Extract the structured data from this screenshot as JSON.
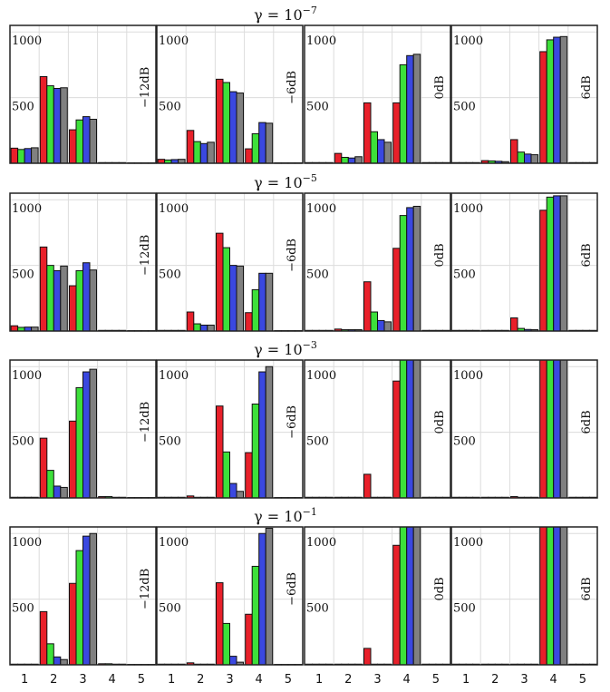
{
  "chart_data": {
    "type": "bar",
    "row_titles": [
      {
        "base": "γ = 10",
        "exp": "−7"
      },
      {
        "base": "γ = 10",
        "exp": "−5"
      },
      {
        "base": "γ = 10",
        "exp": "−3"
      },
      {
        "base": "γ = 10",
        "exp": "−1"
      }
    ],
    "column_labels": [
      "−12dB",
      "−6dB",
      "0dB",
      "6dB"
    ],
    "categories": [
      "1",
      "2",
      "3",
      "4",
      "5"
    ],
    "ylim": [
      0,
      1050
    ],
    "yticks": [
      500,
      1000
    ],
    "grid": true,
    "series_colors": [
      "#e8202a",
      "#3de03a",
      "#3a48e0",
      "#808080"
    ],
    "panels": [
      [
        [
          [
            115,
            105,
            112,
            118
          ],
          [
            660,
            590,
            570,
            575
          ],
          [
            255,
            330,
            355,
            335
          ],
          [
            5,
            5,
            5,
            5
          ],
          [
            3,
            3,
            3,
            3
          ]
        ],
        [
          [
            30,
            25,
            28,
            30
          ],
          [
            250,
            165,
            150,
            160
          ],
          [
            640,
            615,
            545,
            535
          ],
          [
            110,
            225,
            310,
            305
          ],
          [
            3,
            3,
            3,
            3
          ]
        ],
        [
          [
            5,
            5,
            5,
            5
          ],
          [
            75,
            45,
            40,
            50
          ],
          [
            460,
            240,
            180,
            160
          ],
          [
            460,
            750,
            820,
            830
          ],
          [
            5,
            5,
            5,
            5
          ]
        ],
        [
          [
            5,
            5,
            5,
            5
          ],
          [
            20,
            18,
            15,
            12
          ],
          [
            180,
            85,
            70,
            65
          ],
          [
            850,
            940,
            960,
            965
          ],
          [
            5,
            5,
            5,
            5
          ]
        ]
      ],
      [
        [
          [
            40,
            28,
            30,
            30
          ],
          [
            640,
            500,
            460,
            495
          ],
          [
            345,
            460,
            520,
            465
          ],
          [
            5,
            5,
            5,
            5
          ],
          [
            3,
            3,
            3,
            3
          ]
        ],
        [
          [
            5,
            5,
            5,
            5
          ],
          [
            145,
            55,
            45,
            45
          ],
          [
            745,
            635,
            500,
            495
          ],
          [
            140,
            315,
            440,
            440
          ],
          [
            3,
            3,
            3,
            3
          ]
        ],
        [
          [
            5,
            5,
            5,
            5
          ],
          [
            15,
            10,
            10,
            10
          ],
          [
            375,
            145,
            80,
            70
          ],
          [
            630,
            880,
            940,
            950
          ],
          [
            5,
            5,
            5,
            5
          ]
        ],
        [
          [
            5,
            5,
            5,
            5
          ],
          [
            5,
            5,
            5,
            5
          ],
          [
            100,
            20,
            12,
            10
          ],
          [
            920,
            1020,
            1030,
            1030
          ],
          [
            5,
            5,
            5,
            5
          ]
        ]
      ],
      [
        [
          [
            5,
            5,
            5,
            5
          ],
          [
            455,
            210,
            90,
            80
          ],
          [
            585,
            840,
            960,
            980
          ],
          [
            10,
            10,
            5,
            5
          ],
          [
            3,
            3,
            3,
            3
          ]
        ],
        [
          [
            5,
            5,
            5,
            5
          ],
          [
            15,
            5,
            5,
            5
          ],
          [
            700,
            350,
            110,
            50
          ],
          [
            345,
            715,
            960,
            1000
          ],
          [
            3,
            3,
            3,
            3
          ]
        ],
        [
          [
            5,
            5,
            5,
            5
          ],
          [
            5,
            5,
            5,
            5
          ],
          [
            180,
            5,
            5,
            5
          ],
          [
            890,
            1050,
            1050,
            1050
          ],
          [
            5,
            5,
            5,
            5
          ]
        ],
        [
          [
            5,
            5,
            5,
            5
          ],
          [
            5,
            5,
            5,
            5
          ],
          [
            10,
            5,
            5,
            5
          ],
          [
            1050,
            1050,
            1050,
            1050
          ],
          [
            5,
            5,
            5,
            5
          ]
        ]
      ],
      [
        [
          [
            5,
            5,
            5,
            5
          ],
          [
            405,
            160,
            60,
            40
          ],
          [
            620,
            870,
            980,
            1000
          ],
          [
            8,
            8,
            5,
            5
          ],
          [
            3,
            3,
            3,
            3
          ]
        ],
        [
          [
            5,
            5,
            5,
            5
          ],
          [
            15,
            5,
            5,
            5
          ],
          [
            625,
            315,
            65,
            20
          ],
          [
            385,
            750,
            1000,
            1040
          ],
          [
            3,
            3,
            3,
            3
          ]
        ],
        [
          [
            5,
            5,
            5,
            5
          ],
          [
            5,
            5,
            5,
            5
          ],
          [
            125,
            5,
            5,
            5
          ],
          [
            910,
            1050,
            1050,
            1050
          ],
          [
            5,
            5,
            5,
            5
          ]
        ],
        [
          [
            5,
            5,
            5,
            5
          ],
          [
            5,
            5,
            5,
            5
          ],
          [
            5,
            5,
            5,
            5
          ],
          [
            1050,
            1050,
            1050,
            1050
          ],
          [
            5,
            5,
            5,
            5
          ]
        ]
      ]
    ]
  }
}
